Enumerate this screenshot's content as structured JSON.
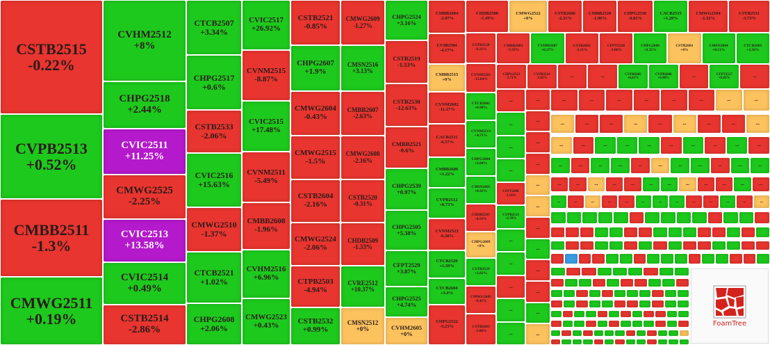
{
  "palette": {
    "r": "#e8352f",
    "g": "#1dc91d",
    "y": "#fcc25e",
    "p": "#b419cb",
    "b": "#3a9de4"
  },
  "columns": [
    {
      "tiles": [
        {
          "code": "CSTB2515",
          "change": "-0.22%",
          "color": "r"
        },
        {
          "code": "CVPB2513",
          "change": "+0.52%",
          "color": "g"
        },
        {
          "code": "CMBB2511",
          "change": "-1.3%",
          "color": "r"
        },
        {
          "code": "CMWG2511",
          "change": "+0.19%",
          "color": "g"
        }
      ]
    },
    {
      "tiles": [
        {
          "code": "CVHM2512",
          "change": "+8%",
          "color": "g"
        },
        {
          "code": "CHPG2518",
          "change": "+2.44%",
          "color": "g"
        },
        {
          "code": "CVIC2511",
          "change": "+11.25%",
          "color": "p"
        },
        {
          "code": "CMWG2525",
          "change": "-2.25%",
          "color": "r"
        },
        {
          "code": "CVIC2513",
          "change": "+13.58%",
          "color": "p"
        },
        {
          "code": "CVIC2514",
          "change": "+0.49%",
          "color": "g"
        },
        {
          "code": "CSTB2514",
          "change": "-2.86%",
          "color": "r"
        }
      ]
    },
    {
      "tiles": [
        {
          "code": "CTCB2507",
          "change": "+3.34%",
          "color": "g"
        },
        {
          "code": "CHPG2517",
          "change": "+0.6%",
          "color": "g"
        },
        {
          "code": "CSTB2533",
          "change": "-2.06%",
          "color": "r"
        },
        {
          "code": "CVIC2516",
          "change": "+15.63%",
          "color": "g"
        },
        {
          "code": "CMWG2510",
          "change": "-1.37%",
          "color": "r"
        },
        {
          "code": "CTCB2521",
          "change": "+1.02%",
          "color": "g"
        },
        {
          "code": "CHPG2608",
          "change": "+2.06%",
          "color": "g"
        }
      ]
    },
    {
      "tiles": [
        {
          "code": "CVIC2517",
          "change": "+26.92%",
          "color": "g"
        },
        {
          "code": "CVNM2515",
          "change": "-8.87%",
          "color": "r"
        },
        {
          "code": "CVIC2515",
          "change": "+17.48%",
          "color": "g"
        },
        {
          "code": "CVNM2511",
          "change": "-5.49%",
          "color": "r"
        },
        {
          "code": "CMBB2608",
          "change": "-1.96%",
          "color": "r"
        },
        {
          "code": "CVHM2516",
          "change": "+6.96%",
          "color": "g"
        },
        {
          "code": "CMWG2523",
          "change": "+0.43%",
          "color": "g"
        }
      ]
    },
    {
      "tiles": [
        {
          "code": "CSTB2521",
          "change": "-0.85%",
          "color": "r"
        },
        {
          "code": "CHPG2607",
          "change": "+1.9%",
          "color": "g"
        },
        {
          "code": "CMWG2604",
          "change": "-0.43%",
          "color": "r"
        },
        {
          "code": "CMWG2515",
          "change": "-1.5%",
          "color": "r"
        },
        {
          "code": "CSTB2604",
          "change": "-2.16%",
          "color": "r"
        },
        {
          "code": "CMWG2524",
          "change": "-2.06%",
          "color": "r"
        },
        {
          "code": "CTPB2503",
          "change": "-4.94%",
          "color": "r"
        },
        {
          "code": "CSTB2532",
          "change": "+0.99%",
          "color": "g"
        }
      ]
    },
    {
      "tiles": [
        {
          "code": "CMWG2609",
          "change": "-1.27%",
          "color": "r"
        },
        {
          "code": "CMSN2516",
          "change": "+3.13%",
          "color": "g"
        },
        {
          "code": "CMBB2607",
          "change": "-2.63%",
          "color": "r"
        },
        {
          "code": "CMWG2608",
          "change": "-2.16%",
          "color": "r"
        },
        {
          "code": "CSTB2520",
          "change": "-0.31%",
          "color": "r"
        },
        {
          "code": "CHDB2509",
          "change": "-1.33%",
          "color": "r"
        },
        {
          "code": "CVRE2512",
          "change": "+10.37%",
          "color": "g"
        },
        {
          "code": "CMSN2512",
          "change": "+0%",
          "color": "y"
        }
      ]
    },
    {
      "tiles": [
        {
          "code": "CHPG2524",
          "change": "+3.16%",
          "color": "g"
        },
        {
          "code": "CSTB2519",
          "change": "-1.53%",
          "color": "r"
        },
        {
          "code": "CSTB2530",
          "change": "-12.63%",
          "color": "r"
        },
        {
          "code": "CMBB2521",
          "change": "-0.6%",
          "color": "r"
        },
        {
          "code": "CHPG2539",
          "change": "+0.97%",
          "color": "g"
        },
        {
          "code": "CHPG2505",
          "change": "+5.38%",
          "color": "g"
        },
        {
          "code": "CFPT2529",
          "change": "+3.87%",
          "color": "g"
        },
        {
          "code": "CHPG2525",
          "change": "+4.74%",
          "color": "g"
        },
        {
          "code": "CVHM2605",
          "change": "+0%",
          "color": "y"
        }
      ]
    },
    {
      "tiles": [
        {
          "code": "CMBB2604",
          "change": "-2.07%",
          "color": "r"
        },
        {
          "code": "CVIB2504",
          "change": "-4.17%",
          "color": "r"
        },
        {
          "code": "CMBB2515",
          "change": "+0%",
          "color": "y"
        },
        {
          "code": "CVNM2602",
          "change": "-11.27%",
          "color": "r"
        },
        {
          "code": "CACB2511",
          "change": "-0.57%",
          "color": "r"
        },
        {
          "code": "CMBB2606",
          "change": "+1.22%",
          "color": "g"
        },
        {
          "code": "CVPB2512",
          "change": "+0.73%",
          "color": "g"
        },
        {
          "code": "CVNM2523",
          "change": "-6.38%",
          "color": "r"
        },
        {
          "code": "CTCB2520",
          "change": "+1.39%",
          "color": "g"
        },
        {
          "code": "CTCB2604",
          "change": "+3.4%",
          "color": "g"
        },
        {
          "code": "CHPG2522",
          "change": "-5.23%",
          "color": "r"
        }
      ]
    },
    {
      "tiles": [
        {
          "code": "CSTB2538",
          "change": "-6.11%",
          "color": "r"
        },
        {
          "code": "CVNM2503",
          "change": "-15.64%",
          "color": "r"
        },
        {
          "code": "CTCB2601",
          "change": "+0.98%",
          "color": "g"
        },
        {
          "code": "CVNM2513",
          "change": "+4.75%",
          "color": "g"
        },
        {
          "code": "CHPG2604",
          "change": "+2.04%",
          "color": "g"
        },
        {
          "code": "CMSN2605",
          "change": "+0.43%",
          "color": "g"
        },
        {
          "code": "CHDB2507",
          "change": "-4.19%",
          "color": "r"
        },
        {
          "code": "CHPG2609",
          "change": "+0%",
          "color": "y"
        },
        {
          "code": "CSTB2529",
          "change": "+2.82%",
          "color": "g"
        },
        {
          "code": "CMWG2605",
          "change": "-0.45%",
          "color": "r"
        },
        {
          "code": "CSTB2605",
          "change": "-1.08%",
          "color": "r"
        }
      ]
    }
  ],
  "top_row": {
    "tiles": [
      {
        "code": "CHDB2508",
        "change": "-1.49%",
        "color": "r"
      },
      {
        "code": "CMWG2522",
        "change": "+0%",
        "color": "y"
      },
      {
        "code": "CSTB2606",
        "change": "-2.31%",
        "color": "r"
      },
      {
        "code": "CMBB2520",
        "change": "-1.96%",
        "color": "r"
      },
      {
        "code": "CHPG2538",
        "change": "-0.83%",
        "color": "r"
      },
      {
        "code": "CACB2515",
        "change": "+1.28%",
        "color": "g"
      },
      {
        "code": "CMWG2504",
        "change": "-1.32%",
        "color": "r"
      },
      {
        "code": "CSTB2531",
        "change": "-3.73%",
        "color": "r"
      }
    ]
  },
  "row2": {
    "tiles": [
      {
        "code": "CMBB2603",
        "change": "-5.59%",
        "color": "r"
      },
      {
        "code": "CVHM2607",
        "change": "+6.37%",
        "color": "g"
      },
      {
        "code": "CSTB2602",
        "change": "-3.11%",
        "color": "r"
      },
      {
        "code": "CFPT2528",
        "change": "-3.88%",
        "color": "r"
      },
      {
        "code": "CHPG2606",
        "change": "+2.35%",
        "color": "g"
      },
      {
        "code": "CSTB2601",
        "change": "+0%",
        "color": "y"
      },
      {
        "code": "CMSN2604",
        "change": "+0.51%",
        "color": "g"
      },
      {
        "code": "CTCB2605",
        "change": "+2.56%",
        "color": "g"
      }
    ]
  },
  "row3": {
    "tiles": [
      {
        "code": "CHPG2523",
        "change": "-2.71%",
        "color": "r"
      },
      {
        "code": "CVPB2514",
        "change": "-1.82%",
        "color": "r"
      },
      {
        "code": "...",
        "color": "r"
      },
      {
        "code": "...",
        "color": "r"
      },
      {
        "code": "CVPB2605",
        "change": "+6.61%",
        "color": "g"
      },
      {
        "code": "CVPB2606",
        "change": "+6.98%",
        "color": "g"
      },
      {
        "code": "...",
        "color": "r"
      },
      {
        "code": "CFPT2517",
        "change": "+6.82%",
        "color": "g"
      },
      {
        "code": "...",
        "color": "r"
      }
    ]
  },
  "col10": {
    "tiles": [
      {
        "code": "...",
        "color": "r"
      },
      {
        "code": "...",
        "color": "g"
      },
      {
        "code": "...",
        "color": "g"
      },
      {
        "code": "...",
        "color": "g"
      },
      {
        "code": "CFPT2608",
        "change": "-1.16%",
        "color": "r"
      },
      {
        "code": "CVPB2513",
        "change": "+2.78%",
        "color": "g"
      },
      {
        "code": "...",
        "color": "g"
      },
      {
        "code": "...",
        "color": "g"
      },
      {
        "code": "...",
        "color": "r"
      },
      {
        "code": "...",
        "color": "g"
      },
      {
        "code": "...",
        "color": "g"
      }
    ]
  },
  "col11": {
    "colors": "rrrryyrgrrgy",
    "label": "..."
  },
  "grid_rows": [
    {
      "colors": "rrrrrryy",
      "label": "..."
    },
    {
      "colors": "yrryryrry",
      "label": "..."
    },
    {
      "colors": "yrgggrgrgr",
      "label": "..."
    },
    {
      "colors": "grggryggrgg",
      "label": "..."
    },
    {
      "colors": "rryrrggyrrgr",
      "label": "..."
    },
    {
      "colors": "gryrrgggrrgry",
      "label": "..."
    },
    {
      "colors": "gggggrggggrggr"
    },
    {
      "colors": "rrrggrrgggrrgrg"
    },
    {
      "colors": "grrggrgrgrrggrr"
    },
    {
      "colors": "rbrrggrgggrggrrg"
    },
    {
      "colors": "grrgggrgg"
    },
    {
      "colors": "rggrgrrggr"
    },
    {
      "colors": "ggrgrgggrgg"
    },
    {
      "colors": "rgrggrrgrgg"
    },
    {
      "colors": "grggrgrgrrgg"
    },
    {
      "colors": "rggrgrgggrgr"
    },
    {
      "colors": "grgrgggrgrggy"
    },
    {
      "colors": "rgggrgrggrggg"
    }
  ],
  "logo": {
    "label": "FoamTree"
  }
}
